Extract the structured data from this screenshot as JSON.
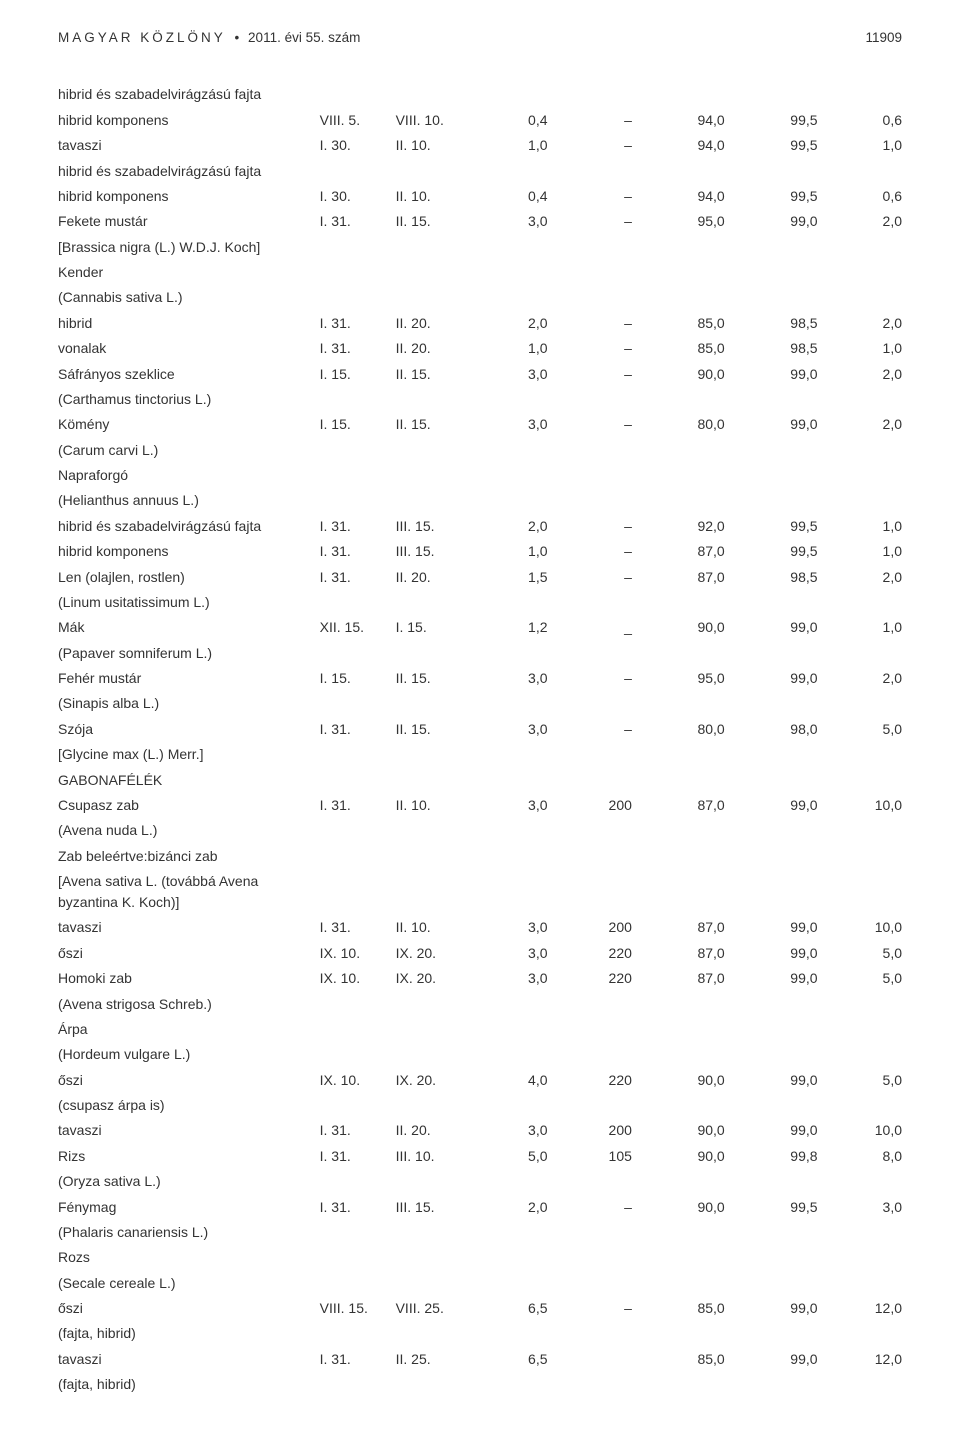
{
  "header": {
    "publication": "MAGYAR KÖZLÖNY",
    "issue": "2011. évi 55. szám",
    "page": "11909"
  },
  "rows": [
    {
      "c1": "hibrid és szabadelvirágzású fajta"
    },
    {
      "c1": "hibrid komponens",
      "c2": "VIII. 5.",
      "c3": "VIII. 10.",
      "c4": "0,4",
      "c5": "–",
      "c6": "94,0",
      "c7": "99,5",
      "c8": "0,6"
    },
    {
      "c1": "tavaszi",
      "c2": "I. 30.",
      "c3": "II. 10.",
      "c4": "1,0",
      "c5": "–",
      "c6": "94,0",
      "c7": "99,5",
      "c8": "1,0"
    },
    {
      "c1": "hibrid és szabadelvirágzású fajta"
    },
    {
      "c1": "hibrid komponens",
      "c2": "I. 30.",
      "c3": "II. 10.",
      "c4": "0,4",
      "c5": "–",
      "c6": "94,0",
      "c7": "99,5",
      "c8": "0,6"
    },
    {
      "c1": "Fekete mustár",
      "c2": "I. 31.",
      "c3": "II. 15.",
      "c4": "3,0",
      "c5": "–",
      "c6": "95,0",
      "c7": "99,0",
      "c8": "2,0"
    },
    {
      "c1": "[Brassica nigra (L.) W.D.J. Koch]"
    },
    {
      "c1": "Kender"
    },
    {
      "c1": "(Cannabis sativa L.)"
    },
    {
      "c1": "hibrid",
      "c2": "I. 31.",
      "c3": "II. 20.",
      "c4": "2,0",
      "c5": "–",
      "c6": "85,0",
      "c7": "98,5",
      "c8": "2,0"
    },
    {
      "c1": "vonalak",
      "c2": "I. 31.",
      "c3": "II. 20.",
      "c4": "1,0",
      "c5": "–",
      "c6": "85,0",
      "c7": "98,5",
      "c8": "1,0"
    },
    {
      "c1": "Sáfrányos szeklice",
      "c2": "I. 15.",
      "c3": "II. 15.",
      "c4": "3,0",
      "c5": "–",
      "c6": "90,0",
      "c7": "99,0",
      "c8": "2,0"
    },
    {
      "c1": "(Carthamus tinctorius L.)"
    },
    {
      "c1": "Kömény",
      "c2": "I. 15.",
      "c3": "II. 15.",
      "c4": "3,0",
      "c5": "–",
      "c6": "80,0",
      "c7": "99,0",
      "c8": "2,0"
    },
    {
      "c1": "(Carum carvi L.)"
    },
    {
      "c1": "Napraforgó"
    },
    {
      "c1": "(Helianthus annuus L.)"
    },
    {
      "c1": "hibrid és szabadelvirágzású fajta",
      "c2": "I. 31.",
      "c3": "III. 15.",
      "c4": "2,0",
      "c5": "–",
      "c6": "92,0",
      "c7": "99,5",
      "c8": "1,0"
    },
    {
      "c1": "hibrid komponens",
      "c2": "I. 31.",
      "c3": "III. 15.",
      "c4": "1,0",
      "c5": "–",
      "c6": "87,0",
      "c7": "99,5",
      "c8": "1,0"
    },
    {
      "c1": "Len (olajlen, rostlen)",
      "c2": "I. 31.",
      "c3": "II. 20.",
      "c4": "1,5",
      "c5": "–",
      "c6": "87,0",
      "c7": "98,5",
      "c8": "2,0"
    },
    {
      "c1": "(Linum usitatissimum L.)"
    },
    {
      "c1": "Mák",
      "c2": "XII. 15.",
      "c3": "I. 15.",
      "c4": "1,2",
      "c5": "_",
      "c6": "90,0",
      "c7": "99,0",
      "c8": "1,0"
    },
    {
      "c1": "(Papaver somniferum L.)"
    },
    {
      "c1": "Fehér mustár",
      "c2": "I. 15.",
      "c3": "II. 15.",
      "c4": "3,0",
      "c5": "–",
      "c6": "95,0",
      "c7": "99,0",
      "c8": "2,0"
    },
    {
      "c1": "(Sinapis alba L.)"
    },
    {
      "c1": "Szója",
      "c2": "I. 31.",
      "c3": "II. 15.",
      "c4": "3,0",
      "c5": "–",
      "c6": "80,0",
      "c7": "98,0",
      "c8": "5,0"
    },
    {
      "c1": "[Glycine max (L.) Merr.]"
    },
    {
      "c1": "GABONAFÉLÉK"
    },
    {
      "c1": "Csupasz zab",
      "c2": "I. 31.",
      "c3": "II. 10.",
      "c4": "3,0",
      "c5": "200",
      "c6": "87,0",
      "c7": "99,0",
      "c8": "10,0"
    },
    {
      "c1": "(Avena nuda L.)"
    },
    {
      "c1": "Zab beleértve:bizánci zab"
    },
    {
      "c1": "[Avena sativa L. (továbbá Avena byzantina K. Koch)]"
    },
    {
      "c1": "tavaszi",
      "c2": "I. 31.",
      "c3": "II. 10.",
      "c4": "3,0",
      "c5": "200",
      "c6": "87,0",
      "c7": "99,0",
      "c8": "10,0"
    },
    {
      "c1": "őszi",
      "c2": "IX. 10.",
      "c3": "IX. 20.",
      "c4": "3,0",
      "c5": "220",
      "c6": "87,0",
      "c7": "99,0",
      "c8": "5,0"
    },
    {
      "c1": "Homoki zab",
      "c2": "IX. 10.",
      "c3": "IX. 20.",
      "c4": "3,0",
      "c5": "220",
      "c6": "87,0",
      "c7": "99,0",
      "c8": "5,0"
    },
    {
      "c1": "(Avena strigosa Schreb.)"
    },
    {
      "c1": "Árpa"
    },
    {
      "c1": "(Hordeum vulgare L.)"
    },
    {
      "c1": "őszi",
      "c2": "IX. 10.",
      "c3": "IX. 20.",
      "c4": "4,0",
      "c5": "220",
      "c6": "90,0",
      "c7": "99,0",
      "c8": "5,0"
    },
    {
      "c1": "(csupasz árpa is)"
    },
    {
      "c1": "tavaszi",
      "c2": "I. 31.",
      "c3": "II. 20.",
      "c4": "3,0",
      "c5": "200",
      "c6": "90,0",
      "c7": "99,0",
      "c8": "10,0"
    },
    {
      "c1": "Rizs",
      "c2": "I. 31.",
      "c3": "III. 10.",
      "c4": "5,0",
      "c5": "105",
      "c6": "90,0",
      "c7": "99,8",
      "c8": "8,0"
    },
    {
      "c1": "(Oryza sativa L.)"
    },
    {
      "c1": "Fénymag",
      "c2": "I. 31.",
      "c3": "III. 15.",
      "c4": "2,0",
      "c5": "–",
      "c6": "90,0",
      "c7": "99,5",
      "c8": "3,0"
    },
    {
      "c1": "(Phalaris canariensis L.)"
    },
    {
      "c1": "Rozs"
    },
    {
      "c1": "(Secale cereale L.)"
    },
    {
      "c1": "őszi",
      "c2": "VIII. 15.",
      "c3": "VIII. 25.",
      "c4": "6,5",
      "c5": "–",
      "c6": "85,0",
      "c7": "99,0",
      "c8": "12,0"
    },
    {
      "c1": "(fajta, hibrid)"
    },
    {
      "c1": "tavaszi",
      "c2": "I. 31.",
      "c3": "II. 25.",
      "c4": "6,5",
      "c5": "",
      "c6": "85,0",
      "c7": "99,0",
      "c8": "12,0"
    },
    {
      "c1": "(fajta, hibrid)"
    }
  ]
}
